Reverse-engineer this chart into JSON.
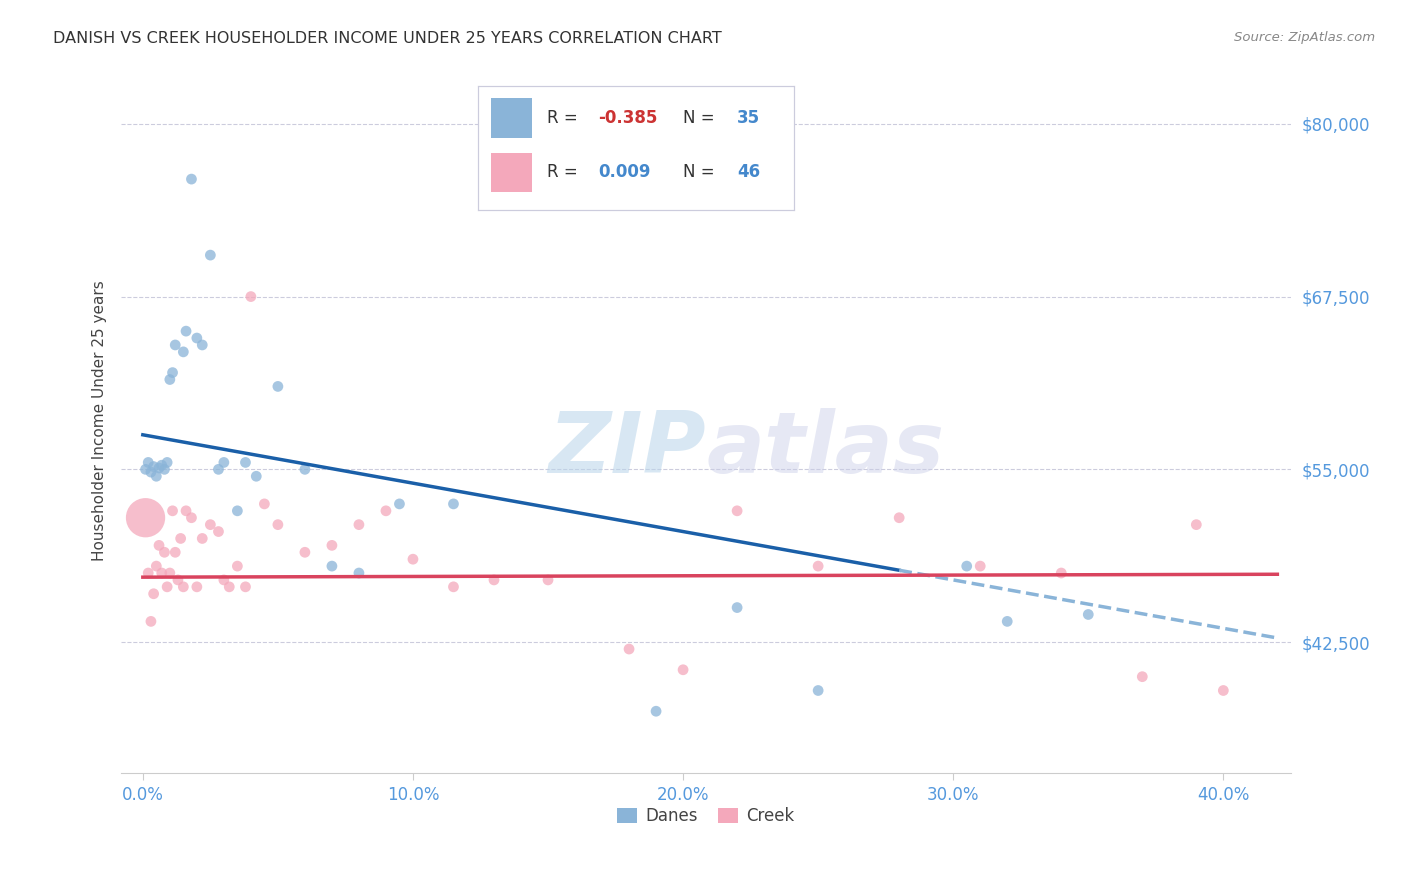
{
  "title": "DANISH VS CREEK HOUSEHOLDER INCOME UNDER 25 YEARS CORRELATION CHART",
  "source": "Source: ZipAtlas.com",
  "xlabel_ticks": [
    "0.0%",
    "10.0%",
    "20.0%",
    "30.0%",
    "40.0%"
  ],
  "xlabel_tick_vals": [
    0.0,
    0.1,
    0.2,
    0.3,
    0.4
  ],
  "ylabel_ticks": [
    "$42,500",
    "$55,000",
    "$67,500",
    "$80,000"
  ],
  "ylabel_tick_vals": [
    42500,
    55000,
    67500,
    80000
  ],
  "xlim": [
    -0.008,
    0.425
  ],
  "ylim": [
    33000,
    84000
  ],
  "ylabel": "Householder Income Under 25 years",
  "danes_color": "#8ab4d8",
  "creek_color": "#f4a8bb",
  "danes_R": -0.385,
  "danes_N": 35,
  "creek_R": 0.009,
  "creek_N": 46,
  "danes_line_color": "#1a5fa8",
  "creek_line_color": "#d9435e",
  "danes_line_dashed_color": "#8ab4d8",
  "watermark_zip": "ZIP",
  "watermark_atlas": "atlas",
  "legend_box_color": "#f0f4ff",
  "legend_border_color": "#aaaacc",
  "danes_x": [
    0.001,
    0.002,
    0.003,
    0.004,
    0.005,
    0.006,
    0.007,
    0.008,
    0.009,
    0.01,
    0.011,
    0.012,
    0.015,
    0.016,
    0.018,
    0.02,
    0.022,
    0.025,
    0.028,
    0.03,
    0.035,
    0.038,
    0.042,
    0.05,
    0.06,
    0.07,
    0.08,
    0.095,
    0.115,
    0.19,
    0.22,
    0.25,
    0.305,
    0.32,
    0.35
  ],
  "danes_y": [
    55000,
    55500,
    54800,
    55200,
    54500,
    55100,
    55300,
    55000,
    55500,
    61500,
    62000,
    64000,
    63500,
    65000,
    76000,
    64500,
    64000,
    70500,
    55000,
    55500,
    52000,
    55500,
    54500,
    61000,
    55000,
    48000,
    47500,
    52500,
    52500,
    37500,
    45000,
    39000,
    48000,
    44000,
    44500
  ],
  "danes_size": [
    60,
    60,
    60,
    60,
    60,
    60,
    60,
    60,
    60,
    60,
    60,
    60,
    60,
    60,
    60,
    60,
    60,
    60,
    60,
    60,
    60,
    60,
    60,
    60,
    60,
    60,
    60,
    60,
    60,
    60,
    60,
    60,
    60,
    60,
    60
  ],
  "creek_x": [
    0.001,
    0.002,
    0.003,
    0.004,
    0.005,
    0.006,
    0.007,
    0.008,
    0.009,
    0.01,
    0.011,
    0.012,
    0.013,
    0.014,
    0.015,
    0.016,
    0.018,
    0.02,
    0.022,
    0.025,
    0.028,
    0.03,
    0.032,
    0.035,
    0.038,
    0.04,
    0.045,
    0.05,
    0.06,
    0.07,
    0.08,
    0.09,
    0.1,
    0.115,
    0.13,
    0.15,
    0.18,
    0.2,
    0.22,
    0.25,
    0.28,
    0.31,
    0.34,
    0.37,
    0.39,
    0.4
  ],
  "creek_y": [
    51500,
    47500,
    44000,
    46000,
    48000,
    49500,
    47500,
    49000,
    46500,
    47500,
    52000,
    49000,
    47000,
    50000,
    46500,
    52000,
    51500,
    46500,
    50000,
    51000,
    50500,
    47000,
    46500,
    48000,
    46500,
    67500,
    52500,
    51000,
    49000,
    49500,
    51000,
    52000,
    48500,
    46500,
    47000,
    47000,
    42000,
    40500,
    52000,
    48000,
    51500,
    48000,
    47500,
    40000,
    51000,
    39000
  ],
  "creek_size": [
    800,
    60,
    60,
    60,
    60,
    60,
    60,
    60,
    60,
    60,
    60,
    60,
    60,
    60,
    60,
    60,
    60,
    60,
    60,
    60,
    60,
    60,
    60,
    60,
    60,
    60,
    60,
    60,
    60,
    60,
    60,
    60,
    60,
    60,
    60,
    60,
    60,
    60,
    60,
    60,
    60,
    60,
    60,
    60,
    60,
    60
  ]
}
